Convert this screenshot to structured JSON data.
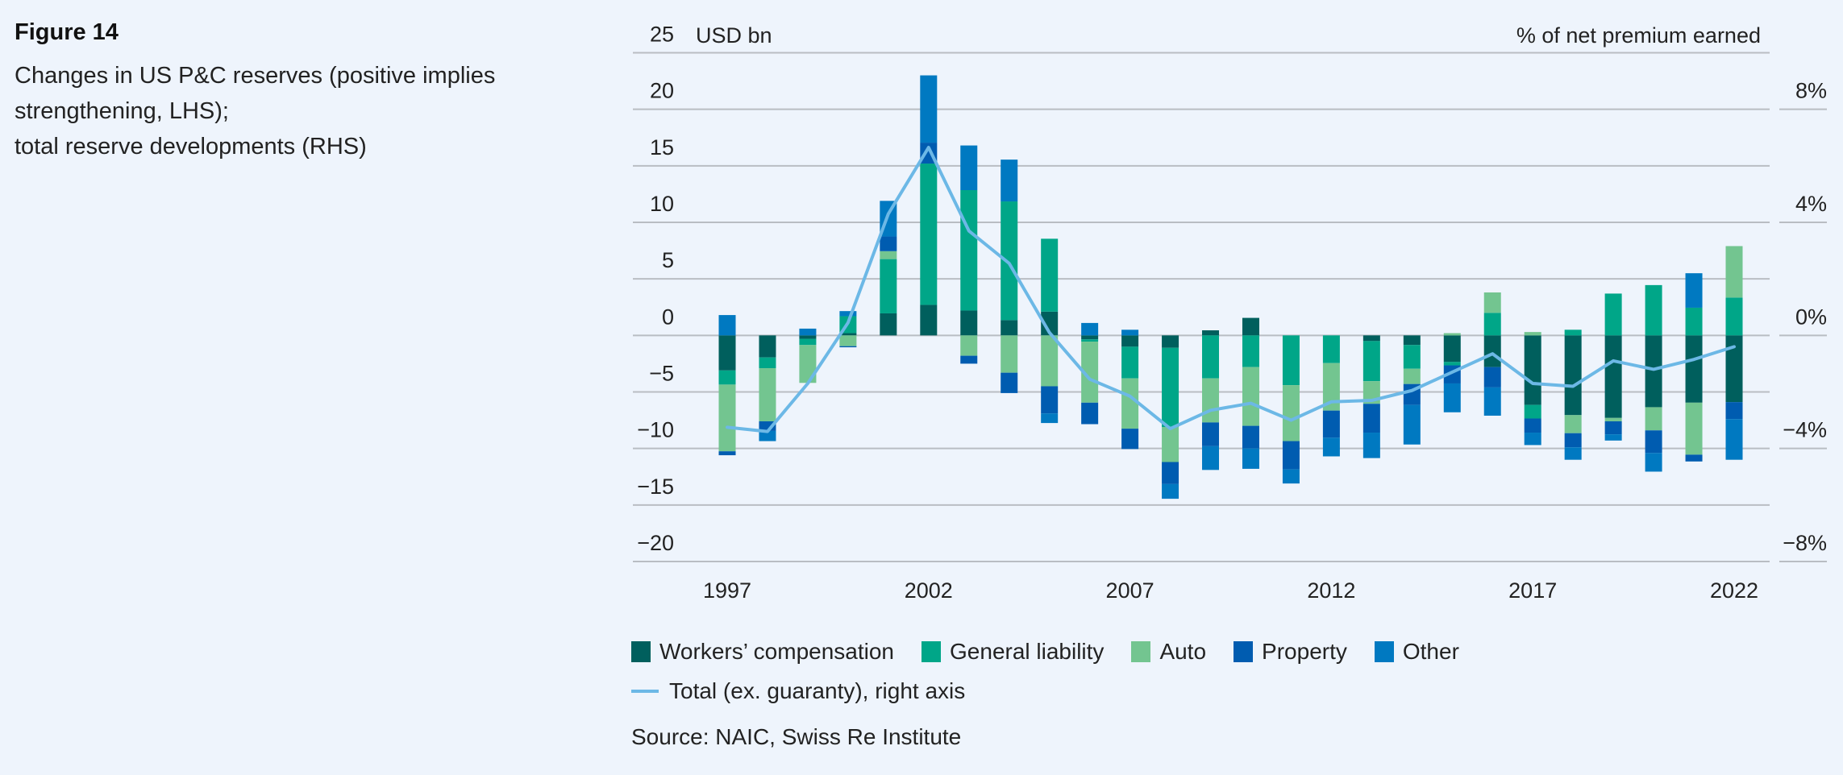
{
  "figure": {
    "label": "Figure 14",
    "title_lines": [
      "Changes in US P&C reserves (positive implies",
      "strengthening, LHS);",
      "total reserve developments (RHS)"
    ],
    "source": "Source: NAIC, Swiss Re Institute"
  },
  "chart_data": {
    "type": "bar",
    "stacked": true,
    "title": "Changes in US P&C reserves (positive implies strengthening, LHS); total reserve developments (RHS)",
    "xlabel": "",
    "ylabel": "USD bn",
    "y2label": "% of net premium earned",
    "ylim": [
      -20,
      25
    ],
    "yticks": [
      25,
      20,
      15,
      10,
      5,
      0,
      -5,
      -10,
      -15,
      -20
    ],
    "ytick_labels": [
      "25",
      "20",
      "15",
      "10",
      "5",
      "0",
      "−5",
      "−10",
      "−15",
      "−20"
    ],
    "y2lim": [
      -8,
      10
    ],
    "y2ticks": [
      8,
      4,
      0,
      -4,
      -8
    ],
    "y2tick_labels": [
      "8%",
      "4%",
      "0%",
      "−4%",
      "−8%"
    ],
    "grid": true,
    "legend_position": "bottom",
    "categories": [
      "1997",
      "1998",
      "1999",
      "2000",
      "2001",
      "2002",
      "2003",
      "2004",
      "2005",
      "2006",
      "2007",
      "2008",
      "2009",
      "2010",
      "2011",
      "2012",
      "2013",
      "2014",
      "2015",
      "2016",
      "2017",
      "2018",
      "2019",
      "2020",
      "2021",
      "2022"
    ],
    "xtick_labels": [
      "1997",
      "2002",
      "2007",
      "2012",
      "2017",
      "2022"
    ],
    "series": [
      {
        "name": "Workers’ compensation",
        "color": "#005F5D",
        "values": [
          -3.1,
          -1.95,
          -0.3,
          0.2,
          1.95,
          2.7,
          2.2,
          1.35,
          2.1,
          -0.35,
          -1.0,
          -1.1,
          0.45,
          1.55,
          0,
          0,
          -0.5,
          -0.85,
          -2.35,
          -2.8,
          -6.15,
          -7.05,
          -7.3,
          -6.35,
          -5.95,
          -5.9
        ]
      },
      {
        "name": "General liability",
        "color": "#00A688",
        "values": [
          -1.25,
          -0.95,
          -0.55,
          1.5,
          4.8,
          12.5,
          10.65,
          10.5,
          6.45,
          -0.2,
          -2.8,
          -7.0,
          -3.8,
          -2.8,
          -4.4,
          -2.45,
          -3.55,
          -2.1,
          -0.3,
          2.0,
          -1.2,
          0.5,
          3.7,
          4.45,
          2.45,
          3.35
        ]
      },
      {
        "name": "Auto",
        "color": "#73C590",
        "values": [
          -5.9,
          -4.7,
          -3.35,
          -0.95,
          0.7,
          0,
          -1.8,
          -3.3,
          -4.5,
          -5.4,
          -4.45,
          -3.1,
          -3.9,
          -5.2,
          -4.95,
          -4.2,
          -2.0,
          -1.35,
          0.2,
          1.8,
          0.3,
          -1.6,
          -0.3,
          -2.05,
          -4.6,
          4.55
        ]
      },
      {
        "name": "Property",
        "color": "#005CB0",
        "values": [
          -0.35,
          -0.85,
          0,
          -0.1,
          1.3,
          1.85,
          -0.7,
          -1.8,
          -2.4,
          -1.9,
          -1.8,
          -1.95,
          -2.1,
          -2.0,
          -2.5,
          -2.4,
          -2.55,
          -1.85,
          -1.6,
          -1.8,
          -1.25,
          -1.25,
          -1.15,
          -2.0,
          -0.6,
          -1.5
        ]
      },
      {
        "name": "Other",
        "color": "#0079C1",
        "values": [
          1.8,
          -0.9,
          0.6,
          0.45,
          3.15,
          5.95,
          3.95,
          3.7,
          -0.85,
          1.1,
          0.5,
          -1.3,
          -2.1,
          -1.8,
          -1.25,
          -1.65,
          -2.25,
          -3.5,
          -2.55,
          -2.5,
          -1.1,
          -1.1,
          -0.55,
          -1.65,
          3.05,
          -3.6
        ]
      }
    ],
    "line_series": {
      "name": "Total (ex. guaranty), right axis",
      "axis": "right",
      "color": "#6CB8E6",
      "values": [
        -3.25,
        -3.4,
        -1.7,
        0.45,
        4.3,
        6.65,
        3.7,
        2.55,
        0.1,
        -1.55,
        -2.15,
        -3.3,
        -2.65,
        -2.4,
        -3.0,
        -2.35,
        -2.3,
        -1.95,
        -1.3,
        -0.65,
        -1.7,
        -1.8,
        -0.9,
        -1.2,
        -0.85,
        -0.4
      ]
    }
  },
  "legend": {
    "items": [
      {
        "label": "Workers’ compensation",
        "color": "#005F5D"
      },
      {
        "label": "General liability",
        "color": "#00A688"
      },
      {
        "label": "Auto",
        "color": "#73C590"
      },
      {
        "label": "Property",
        "color": "#005CB0"
      },
      {
        "label": "Other",
        "color": "#0079C1"
      }
    ],
    "line_label": "Total (ex. guaranty), right axis"
  }
}
